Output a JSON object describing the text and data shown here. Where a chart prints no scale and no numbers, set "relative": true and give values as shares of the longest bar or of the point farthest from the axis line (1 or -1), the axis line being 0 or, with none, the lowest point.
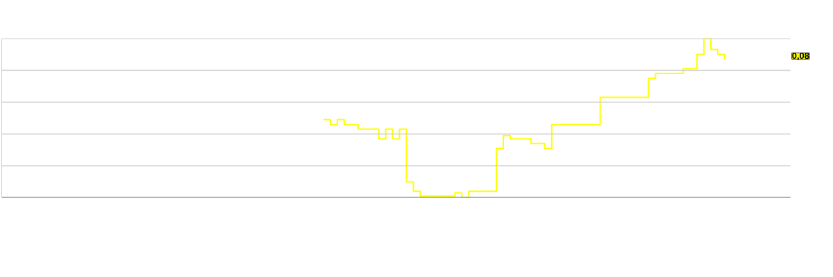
{
  "chart_data": {
    "type": "step",
    "relative": true,
    "grid": "y",
    "color": "#ffff00",
    "categories": [
      null,
      null,
      null,
      null,
      null,
      null,
      null,
      null,
      null,
      null,
      null,
      null,
      null,
      null,
      null,
      null,
      null,
      null,
      null,
      null,
      null,
      null,
      null,
      null,
      null,
      null,
      null,
      null,
      null,
      null,
      null,
      null,
      null,
      null,
      null,
      null,
      null,
      null,
      null,
      null,
      null,
      null,
      null,
      null,
      null,
      null,
      null,
      null,
      null,
      null,
      null,
      null,
      null,
      null,
      null,
      null,
      null,
      null,
      null,
      null,
      null,
      null,
      null,
      null,
      null,
      null,
      null,
      null,
      null,
      null,
      null,
      null,
      null,
      null,
      null,
      null,
      null,
      null,
      null,
      null,
      null,
      null,
      null,
      null,
      null,
      null,
      null,
      null,
      null,
      null,
      null,
      null,
      null,
      null,
      null,
      null,
      null,
      null,
      null,
      null,
      null,
      null,
      null,
      null,
      null,
      null,
      null,
      null,
      null,
      null,
      null,
      null,
      null,
      null
    ],
    "values": [
      null,
      null,
      null,
      null,
      null,
      null,
      null,
      null,
      null,
      null,
      null,
      null,
      null,
      null,
      null,
      null,
      null,
      null,
      null,
      null,
      null,
      null,
      null,
      null,
      null,
      null,
      null,
      null,
      null,
      null,
      null,
      null,
      null,
      null,
      null,
      null,
      null,
      null,
      null,
      null,
      null,
      null,
      null,
      null,
      null,
      null,
      0.49,
      0.46,
      0.49,
      0.46,
      0.46,
      0.43,
      0.43,
      0.43,
      0.37,
      0.43,
      0.37,
      0.43,
      0.1,
      0.04,
      0.01,
      0.01,
      0.01,
      0.01,
      0.01,
      0.03,
      0.0,
      0.04,
      0.04,
      0.04,
      0.04,
      0.31,
      0.39,
      0.37,
      0.37,
      0.37,
      0.34,
      0.34,
      0.31,
      0.46,
      0.46,
      0.46,
      0.46,
      0.46,
      0.46,
      0.46,
      0.63,
      0.63,
      0.63,
      0.63,
      0.63,
      0.63,
      0.63,
      0.75,
      0.78,
      0.78,
      0.78,
      0.78,
      0.81,
      0.81,
      0.9,
      1.0,
      0.93,
      0.9,
      0.87,
      null,
      null,
      null,
      null,
      null,
      null,
      null,
      null,
      null
    ],
    "annotations": [
      "0,08"
    ]
  }
}
